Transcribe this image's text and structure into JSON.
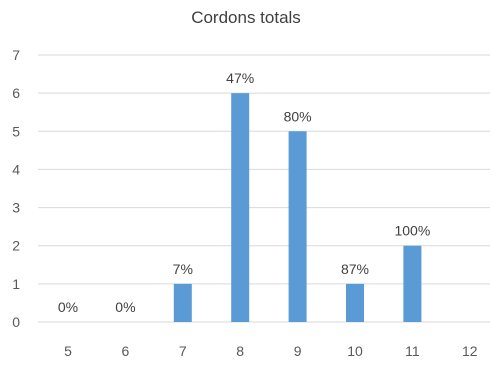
{
  "chart_data": {
    "type": "bar",
    "title": "Cordons totals",
    "xlabel": "",
    "ylabel": "",
    "categories": [
      "5",
      "6",
      "7",
      "8",
      "9",
      "10",
      "11",
      "12"
    ],
    "values": [
      0,
      0,
      1,
      6,
      5,
      1,
      2,
      0
    ],
    "data_labels": [
      "0%",
      "0%",
      "7%",
      "47%",
      "80%",
      "87%",
      "100%",
      ""
    ],
    "y_ticks": [
      "0",
      "1",
      "2",
      "3",
      "4",
      "5",
      "6",
      "7"
    ],
    "ylim": [
      0,
      7
    ],
    "grid": true,
    "legend": "none",
    "bar_color": "#5b9bd5",
    "grid_color": "#d9d9d9"
  }
}
